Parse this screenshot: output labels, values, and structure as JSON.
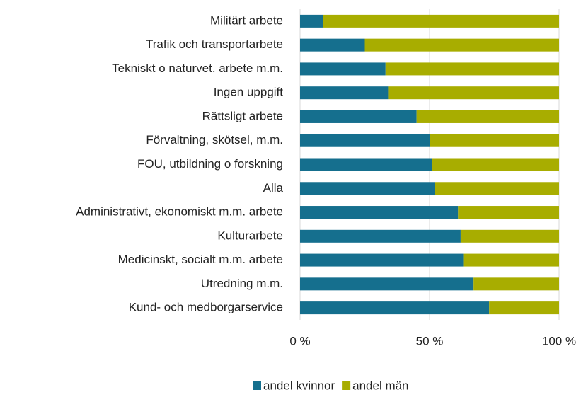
{
  "chart_data": {
    "type": "stacked_barh",
    "categories": [
      "Militärt arbete",
      "Trafik och transportarbete",
      "Tekniskt o naturvet. arbete m.m.",
      "Ingen uppgift",
      "Rättsligt arbete",
      "Förvaltning, skötsel, m.m.",
      "FOU, utbildning o forskning",
      "Alla",
      "Administrativt, ekonomiskt m.m. arbete",
      "Kulturarbete",
      "Medicinskt, socialt m.m. arbete",
      "Utredning m.m.",
      "Kund- och medborgarservice"
    ],
    "series": [
      {
        "name": "andel kvinnor",
        "color": "#156f8e",
        "values": [
          9,
          25,
          33,
          34,
          45,
          50,
          51,
          52,
          61,
          62,
          63,
          67,
          73
        ]
      },
      {
        "name": "andel män",
        "color": "#a8ad00",
        "values": [
          91,
          75,
          67,
          66,
          55,
          50,
          49,
          48,
          39,
          38,
          37,
          33,
          27
        ]
      }
    ],
    "xlim": [
      0,
      100
    ],
    "xticks": [
      {
        "value": 0,
        "label": "0 %"
      },
      {
        "value": 50,
        "label": "50 %"
      },
      {
        "value": 100,
        "label": "100 %"
      }
    ],
    "grid": true,
    "legend": "bottom"
  }
}
